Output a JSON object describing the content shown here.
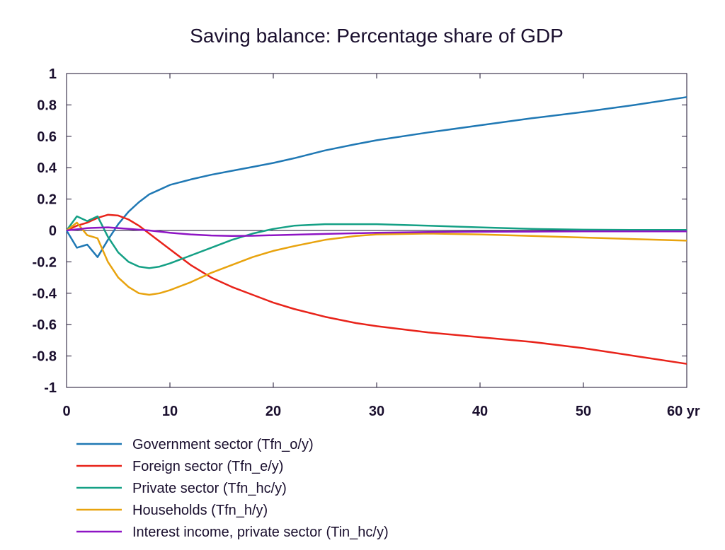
{
  "chart_data": {
    "type": "line",
    "title": "Saving balance: Percentage share of GDP",
    "xlabel": "",
    "ylabel": "",
    "x_unit": "yr",
    "xlim": [
      0,
      60
    ],
    "ylim": [
      -1,
      1
    ],
    "x_ticks": [
      0,
      10,
      20,
      30,
      40,
      50,
      60
    ],
    "x_tick_labels": [
      "0",
      "10",
      "20",
      "30",
      "40",
      "50",
      "60 yr"
    ],
    "y_ticks": [
      1,
      0.8,
      0.6,
      0.4,
      0.2,
      0,
      -0.2,
      -0.4,
      -0.6,
      -0.8,
      -1
    ],
    "y_tick_labels": [
      "1",
      "0.8",
      "0.6",
      "0.4",
      "0.2",
      "0",
      "-0.2",
      "-0.4",
      "-0.6",
      "-0.8",
      "-1"
    ],
    "grid": false,
    "zero_line": true,
    "legend_position": "bottom",
    "series": [
      {
        "name": "Government sector (Tfn_o/y)",
        "color": "#1f78b4",
        "x": [
          0,
          1,
          2,
          3,
          4,
          5,
          6,
          7,
          8,
          9,
          10,
          12,
          14,
          16,
          18,
          20,
          22,
          25,
          28,
          30,
          35,
          40,
          45,
          50,
          55,
          60
        ],
        "y": [
          0,
          -0.11,
          -0.09,
          -0.17,
          -0.06,
          0.04,
          0.12,
          0.18,
          0.23,
          0.26,
          0.29,
          0.325,
          0.355,
          0.38,
          0.405,
          0.43,
          0.46,
          0.51,
          0.55,
          0.575,
          0.625,
          0.67,
          0.715,
          0.755,
          0.8,
          0.85
        ]
      },
      {
        "name": "Foreign sector (Tfn_e/y)",
        "color": "#e8231a",
        "x": [
          0,
          1,
          2,
          3,
          4,
          5,
          6,
          7,
          8,
          9,
          10,
          12,
          14,
          16,
          18,
          20,
          22,
          25,
          28,
          30,
          35,
          40,
          45,
          50,
          55,
          60
        ],
        "y": [
          0,
          0.03,
          0.05,
          0.08,
          0.1,
          0.095,
          0.07,
          0.03,
          -0.02,
          -0.07,
          -0.12,
          -0.22,
          -0.3,
          -0.36,
          -0.41,
          -0.46,
          -0.5,
          -0.55,
          -0.59,
          -0.61,
          -0.65,
          -0.68,
          -0.71,
          -0.75,
          -0.8,
          -0.85
        ]
      },
      {
        "name": "Private sector (Tfn_hc/y)",
        "color": "#14a085",
        "x": [
          0,
          1,
          2,
          3,
          4,
          5,
          6,
          7,
          8,
          9,
          10,
          12,
          14,
          16,
          18,
          20,
          22,
          25,
          28,
          30,
          35,
          40,
          45,
          50,
          55,
          60
        ],
        "y": [
          0,
          0.09,
          0.06,
          0.09,
          -0.04,
          -0.14,
          -0.2,
          -0.23,
          -0.24,
          -0.23,
          -0.21,
          -0.16,
          -0.11,
          -0.06,
          -0.02,
          0.01,
          0.03,
          0.04,
          0.04,
          0.04,
          0.03,
          0.02,
          0.01,
          0.005,
          0.003,
          0.003
        ]
      },
      {
        "name": "Households (Tfn_h/y)",
        "color": "#e8a30e",
        "x": [
          0,
          1,
          2,
          3,
          4,
          5,
          6,
          7,
          8,
          9,
          10,
          12,
          14,
          16,
          18,
          20,
          22,
          25,
          28,
          30,
          35,
          40,
          45,
          50,
          55,
          60
        ],
        "y": [
          0,
          0.05,
          -0.03,
          -0.05,
          -0.2,
          -0.3,
          -0.36,
          -0.4,
          -0.41,
          -0.4,
          -0.38,
          -0.33,
          -0.27,
          -0.22,
          -0.17,
          -0.13,
          -0.1,
          -0.06,
          -0.035,
          -0.025,
          -0.02,
          -0.025,
          -0.035,
          -0.045,
          -0.055,
          -0.065
        ]
      },
      {
        "name": "Interest income, private sector (Tin_hc/y)",
        "color": "#8e14c4",
        "x": [
          0,
          2,
          4,
          6,
          8,
          10,
          12,
          14,
          16,
          18,
          20,
          25,
          30,
          35,
          40,
          45,
          50,
          55,
          60
        ],
        "y": [
          0,
          0.015,
          0.02,
          0.01,
          0,
          -0.015,
          -0.025,
          -0.032,
          -0.035,
          -0.034,
          -0.03,
          -0.022,
          -0.015,
          -0.01,
          -0.008,
          -0.007,
          -0.006,
          -0.006,
          -0.006
        ]
      }
    ]
  }
}
